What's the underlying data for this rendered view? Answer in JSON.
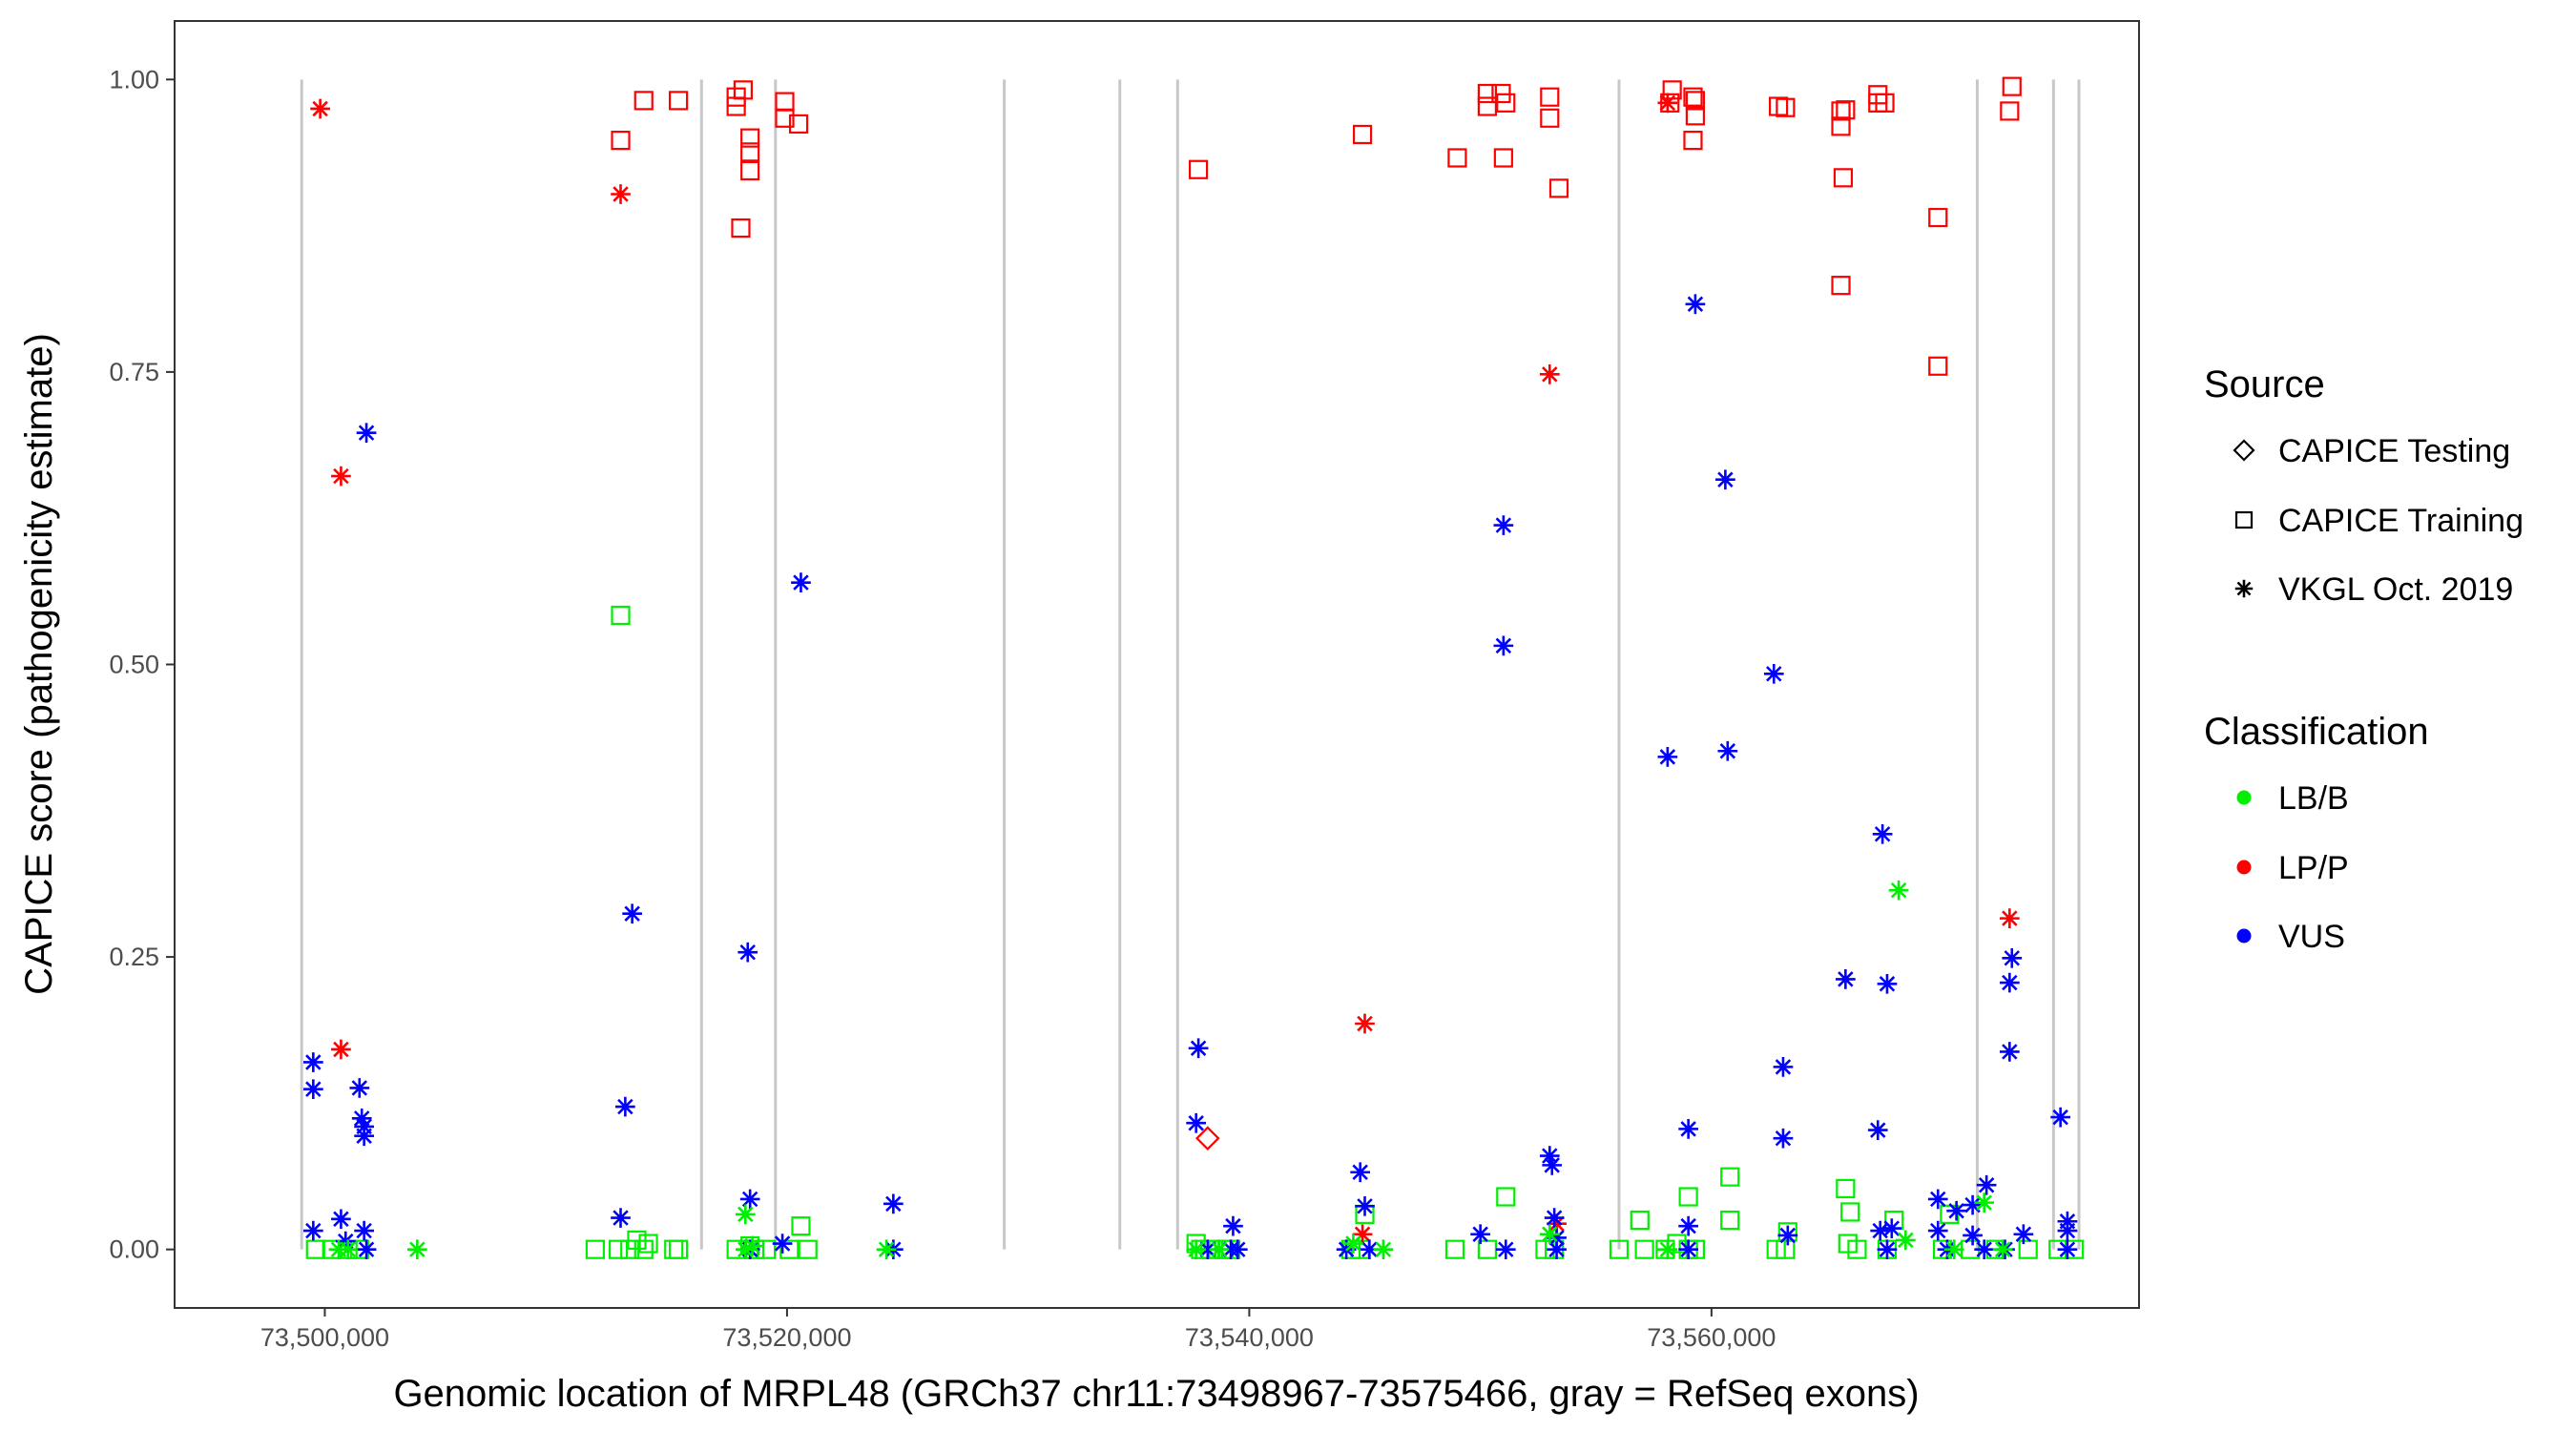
{
  "chart_data": {
    "type": "scatter",
    "title": "",
    "xlabel": "Genomic location of MRPL48 (GRCh37 chr11:73498967-73575466, gray = RefSeq exons)",
    "ylabel": "CAPICE score (pathogenicity estimate)",
    "xlim": [
      73493500,
      73578500
    ],
    "ylim": [
      -0.05,
      1.05
    ],
    "x_ticks": [
      73500000,
      73520000,
      73540000,
      73560000
    ],
    "x_tick_labels": [
      "73,500,000",
      "73,520,000",
      "73,540,000",
      "73,560,000"
    ],
    "y_ticks": [
      0.0,
      0.25,
      0.5,
      0.75,
      1.0
    ],
    "y_tick_labels": [
      "0.00",
      "0.25",
      "0.50",
      "0.75",
      "1.00"
    ],
    "grid": false,
    "exon_lines": [
      73499000,
      73516300,
      73519500,
      73529400,
      73534400,
      73536900,
      73556000,
      73571500,
      73574800,
      73575900
    ],
    "legend": {
      "placement": "right",
      "source_title": "Source",
      "source_items": [
        {
          "label": "CAPICE Testing",
          "shape": "diamond"
        },
        {
          "label": "CAPICE Training",
          "shape": "square"
        },
        {
          "label": "VKGL Oct. 2019",
          "shape": "asterisk"
        }
      ],
      "class_title": "Classification",
      "class_items": [
        {
          "label": "LB/B",
          "color": "#00ee00"
        },
        {
          "label": "LP/P",
          "color": "#ff0000"
        },
        {
          "label": "VUS",
          "color": "#0000ff"
        }
      ]
    },
    "colors": {
      "LB/B": "#00ee00",
      "LP/P": "#ff0000",
      "VUS": "#0000ff"
    },
    "series": [
      {
        "name": "CAPICE Training LP/P",
        "source": "CAPICE Training",
        "classification": "LP/P",
        "points": [
          [
            73512800,
            0.948
          ],
          [
            73513800,
            0.982
          ],
          [
            73515300,
            0.982
          ],
          [
            73517800,
            0.985
          ],
          [
            73517800,
            0.977
          ],
          [
            73518100,
            0.991
          ],
          [
            73518000,
            0.873
          ],
          [
            73518400,
            0.95
          ],
          [
            73518400,
            0.938
          ],
          [
            73518400,
            0.922
          ],
          [
            73519900,
            0.981
          ],
          [
            73519900,
            0.967
          ],
          [
            73520500,
            0.962
          ],
          [
            73537800,
            0.923
          ],
          [
            73544900,
            0.953
          ],
          [
            73549000,
            0.933
          ],
          [
            73550300,
            0.988
          ],
          [
            73550300,
            0.977
          ],
          [
            73550900,
            0.988
          ],
          [
            73551100,
            0.98
          ],
          [
            73551000,
            0.933
          ],
          [
            73553000,
            0.985
          ],
          [
            73553000,
            0.967
          ],
          [
            73553400,
            0.907
          ],
          [
            73558300,
            0.991
          ],
          [
            73558200,
            0.98
          ],
          [
            73559200,
            0.985
          ],
          [
            73559300,
            0.982
          ],
          [
            73559300,
            0.969
          ],
          [
            73559200,
            0.948
          ],
          [
            73562900,
            0.977
          ],
          [
            73563200,
            0.976
          ],
          [
            73565600,
            0.973
          ],
          [
            73565600,
            0.96
          ],
          [
            73565800,
            0.974
          ],
          [
            73565700,
            0.916
          ],
          [
            73565600,
            0.824
          ],
          [
            73567200,
            0.987
          ],
          [
            73567200,
            0.98
          ],
          [
            73567500,
            0.98
          ],
          [
            73569800,
            0.882
          ],
          [
            73569800,
            0.755
          ],
          [
            73573000,
            0.994
          ],
          [
            73572900,
            0.973
          ]
        ]
      },
      {
        "name": "CAPICE Training LB/B",
        "source": "CAPICE Training",
        "classification": "LB/B",
        "points": [
          [
            73499600,
            0.0
          ],
          [
            73500300,
            0.0
          ],
          [
            73501000,
            0.0
          ],
          [
            73501500,
            0.0
          ],
          [
            73511700,
            0.0
          ],
          [
            73512700,
            0.0
          ],
          [
            73512800,
            0.542
          ],
          [
            73513200,
            0.0
          ],
          [
            73513500,
            0.008
          ],
          [
            73513800,
            0.0
          ],
          [
            73514000,
            0.005
          ],
          [
            73515100,
            0.0
          ],
          [
            73515300,
            0.0
          ],
          [
            73517800,
            0.0
          ],
          [
            73518400,
            0.003
          ],
          [
            73518600,
            0.0
          ],
          [
            73519100,
            0.0
          ],
          [
            73520100,
            0.0
          ],
          [
            73520600,
            0.02
          ],
          [
            73520900,
            0.0
          ],
          [
            73537700,
            0.005
          ],
          [
            73537900,
            0.0
          ],
          [
            73538300,
            0.0
          ],
          [
            73538900,
            0.0
          ],
          [
            73539200,
            0.0
          ],
          [
            73544400,
            0.0
          ],
          [
            73544800,
            0.0
          ],
          [
            73545000,
            0.03
          ],
          [
            73548900,
            0.0
          ],
          [
            73550300,
            0.0
          ],
          [
            73551100,
            0.045
          ],
          [
            73552800,
            0.0
          ],
          [
            73553200,
            0.0
          ],
          [
            73556000,
            0.0
          ],
          [
            73556900,
            0.025
          ],
          [
            73557100,
            0.0
          ],
          [
            73558000,
            0.0
          ],
          [
            73558500,
            0.005
          ],
          [
            73559000,
            0.0
          ],
          [
            73559000,
            0.045
          ],
          [
            73559300,
            0.0
          ],
          [
            73560800,
            0.025
          ],
          [
            73560800,
            0.062
          ],
          [
            73562800,
            0.0
          ],
          [
            73563200,
            0.0
          ],
          [
            73563300,
            0.015
          ],
          [
            73565800,
            0.052
          ],
          [
            73565900,
            0.005
          ],
          [
            73566000,
            0.032
          ],
          [
            73566300,
            0.0
          ],
          [
            73567600,
            0.0
          ],
          [
            73567900,
            0.025
          ],
          [
            73570000,
            0.0
          ],
          [
            73570300,
            0.03
          ],
          [
            73571200,
            0.0
          ],
          [
            73572300,
            0.0
          ],
          [
            73573700,
            0.0
          ],
          [
            73575000,
            0.0
          ],
          [
            73575700,
            0.0
          ]
        ]
      },
      {
        "name": "CAPICE Testing LP/P",
        "source": "CAPICE Testing",
        "classification": "LP/P",
        "points": [
          [
            73538200,
            0.095
          ]
        ]
      },
      {
        "name": "VKGL LP/P",
        "source": "VKGL Oct. 2019",
        "classification": "LP/P",
        "points": [
          [
            73499800,
            0.975
          ],
          [
            73500700,
            0.661
          ],
          [
            73500700,
            0.171
          ],
          [
            73512800,
            0.902
          ],
          [
            73545000,
            0.193
          ],
          [
            73544900,
            0.013
          ],
          [
            73553000,
            0.748
          ],
          [
            73553300,
            0.022
          ],
          [
            73558100,
            0.98
          ],
          [
            73572900,
            0.283
          ]
        ]
      },
      {
        "name": "VKGL VUS",
        "source": "VKGL Oct. 2019",
        "classification": "VUS",
        "points": [
          [
            73499500,
            0.16
          ],
          [
            73499500,
            0.137
          ],
          [
            73499500,
            0.016
          ],
          [
            73500700,
            0.026
          ],
          [
            73500900,
            0.007
          ],
          [
            73501500,
            0.138
          ],
          [
            73501600,
            0.112
          ],
          [
            73501700,
            0.105
          ],
          [
            73501700,
            0.097
          ],
          [
            73501700,
            0.016
          ],
          [
            73501800,
            0.0
          ],
          [
            73501800,
            0.698
          ],
          [
            73512800,
            0.027
          ],
          [
            73513000,
            0.122
          ],
          [
            73513300,
            0.287
          ],
          [
            73518300,
            0.254
          ],
          [
            73518400,
            0.043
          ],
          [
            73518400,
            0.0
          ],
          [
            73520600,
            0.57
          ],
          [
            73519800,
            0.005
          ],
          [
            73524600,
            0.039
          ],
          [
            73524600,
            0.0
          ],
          [
            73537800,
            0.172
          ],
          [
            73537700,
            0.108
          ],
          [
            73538200,
            0.0
          ],
          [
            73539300,
            0.02
          ],
          [
            73539200,
            0.0
          ],
          [
            73539500,
            0.0
          ],
          [
            73544800,
            0.066
          ],
          [
            73545000,
            0.037
          ],
          [
            73544200,
            0.0
          ],
          [
            73545200,
            0.0
          ],
          [
            73550000,
            0.013
          ],
          [
            73551000,
            0.619
          ],
          [
            73551000,
            0.516
          ],
          [
            73551100,
            0.0
          ],
          [
            73553000,
            0.08
          ],
          [
            73553100,
            0.072
          ],
          [
            73553200,
            0.027
          ],
          [
            73553300,
            0.01
          ],
          [
            73553300,
            0.0
          ],
          [
            73558100,
            0.421
          ],
          [
            73559300,
            0.808
          ],
          [
            73559000,
            0.103
          ],
          [
            73559000,
            0.02
          ],
          [
            73559000,
            0.0
          ],
          [
            73560600,
            0.658
          ],
          [
            73560700,
            0.426
          ],
          [
            73562700,
            0.492
          ],
          [
            73563100,
            0.156
          ],
          [
            73563100,
            0.095
          ],
          [
            73563300,
            0.012
          ],
          [
            73565800,
            0.231
          ],
          [
            73567200,
            0.102
          ],
          [
            73567400,
            0.355
          ],
          [
            73567600,
            0.227
          ],
          [
            73567300,
            0.016
          ],
          [
            73567800,
            0.018
          ],
          [
            73567600,
            0.0
          ],
          [
            73569800,
            0.043
          ],
          [
            73569800,
            0.016
          ],
          [
            73570200,
            0.0
          ],
          [
            73570600,
            0.033
          ],
          [
            73571300,
            0.038
          ],
          [
            73571300,
            0.012
          ],
          [
            73571900,
            0.055
          ],
          [
            73571800,
            0.0
          ],
          [
            73572700,
            0.0
          ],
          [
            73573000,
            0.249
          ],
          [
            73572900,
            0.228
          ],
          [
            73572900,
            0.169
          ],
          [
            73573500,
            0.013
          ],
          [
            73575100,
            0.113
          ],
          [
            73575400,
            0.024
          ],
          [
            73575400,
            0.016
          ],
          [
            73575400,
            0.0
          ]
        ]
      },
      {
        "name": "VKGL LB/B",
        "source": "VKGL Oct. 2019",
        "classification": "LB/B",
        "points": [
          [
            73500600,
            0.0
          ],
          [
            73501000,
            0.0
          ],
          [
            73504000,
            0.0
          ],
          [
            73518200,
            0.0
          ],
          [
            73518200,
            0.03
          ],
          [
            73518500,
            0.003
          ],
          [
            73524300,
            0.0
          ],
          [
            73537700,
            0.0
          ],
          [
            73538700,
            0.0
          ],
          [
            73544500,
            0.005
          ],
          [
            73545800,
            0.0
          ],
          [
            73553000,
            0.013
          ],
          [
            73558100,
            0.0
          ],
          [
            73568100,
            0.307
          ],
          [
            73568400,
            0.008
          ],
          [
            73570500,
            0.0
          ],
          [
            73571800,
            0.04
          ],
          [
            73572600,
            0.0
          ]
        ]
      }
    ]
  }
}
